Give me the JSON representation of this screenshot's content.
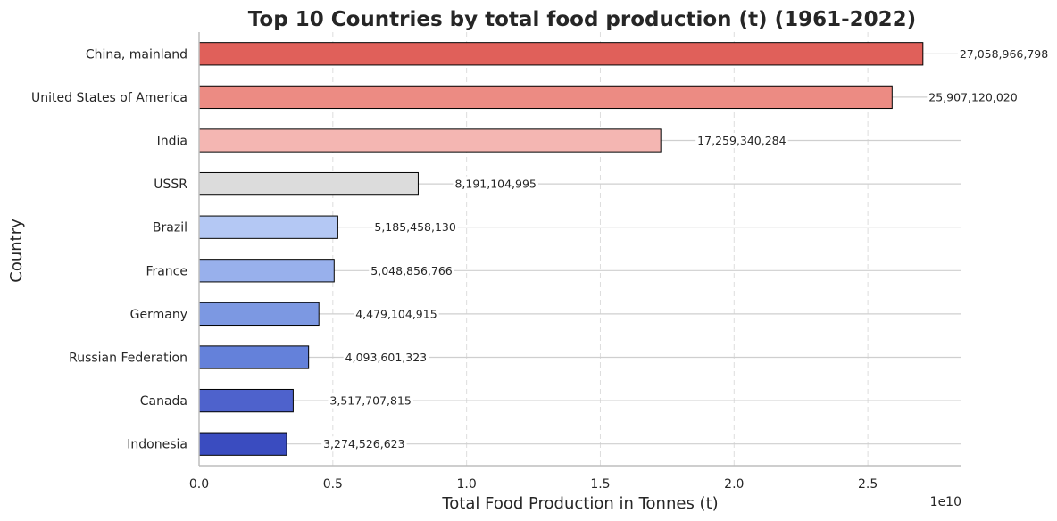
{
  "chart_data": {
    "type": "bar",
    "orientation": "horizontal",
    "title": "Top 10 Countries by total food production (t) (1961-2022)",
    "xlabel": "Total Food Production in Tonnes (t)",
    "ylabel": "Country",
    "x_offset_label": "1e10",
    "xlim": [
      0,
      28500000000
    ],
    "x_ticks": [
      0,
      5000000000,
      10000000000,
      15000000000,
      20000000000,
      25000000000
    ],
    "x_tick_labels": [
      "0.0",
      "0.5",
      "1.0",
      "1.5",
      "2.0",
      "2.5"
    ],
    "grid": "x-dashed",
    "categories": [
      "China, mainland",
      "United States of America",
      "India",
      "USSR",
      "Brazil",
      "France",
      "Germany",
      "Russian Federation",
      "Canada",
      "Indonesia"
    ],
    "values": [
      27058966798,
      25907120020,
      17259340284,
      8191104995,
      5185458130,
      5048856766,
      4479104915,
      4093601323,
      3517707815,
      3274526623
    ],
    "value_labels": [
      "27,058,966,798",
      "25,907,120,020",
      "17,259,340,284",
      "8,191,104,995",
      "5,185,458,130",
      "5,048,856,766",
      "4,479,104,915",
      "4,093,601,323",
      "3,517,707,815",
      "3,274,526,623"
    ],
    "colors": [
      "#e0605a",
      "#ec8b83",
      "#f4b6b2",
      "#dcdcdc",
      "#b4c8f4",
      "#98b0ec",
      "#7c98e2",
      "#6481da",
      "#4e62cc",
      "#3a4cc0"
    ]
  }
}
